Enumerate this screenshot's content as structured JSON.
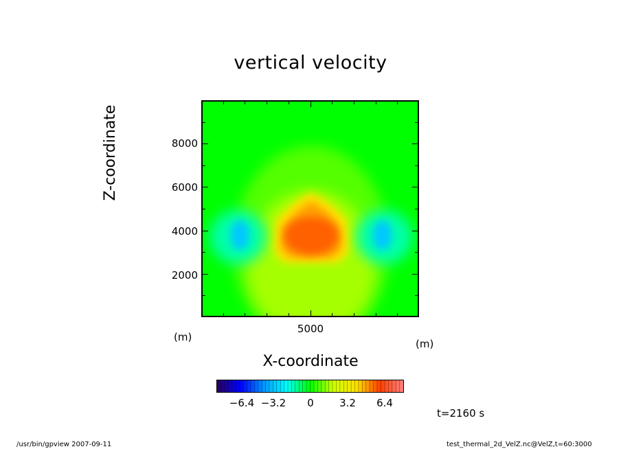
{
  "chart_data": {
    "type": "heatmap",
    "title": "vertical velocity",
    "xlabel": "X-coordinate",
    "ylabel": "Z-coordinate",
    "x_unit": "(m)",
    "z_unit": "(m)",
    "x_range": [
      0,
      10000
    ],
    "z_range": [
      0,
      10000
    ],
    "x_ticks": [
      5000
    ],
    "z_ticks": [
      2000,
      4000,
      6000,
      8000
    ],
    "colorbar": {
      "range": [
        -8,
        8
      ],
      "tick_labels": [
        "−6.4",
        "−3.2",
        "0",
        "3.2",
        "6.4"
      ],
      "tick_values": [
        -6.4,
        -3.2,
        0,
        3.2,
        6.4
      ],
      "colors": [
        "#2a0060",
        "#0000ff",
        "#0096ff",
        "#00ffff",
        "#00ff00",
        "#d0ff00",
        "#ffe000",
        "#ff4000",
        "#ff8080"
      ]
    },
    "features": [
      {
        "label": "updraft core",
        "x": 5000,
        "z": 3900,
        "value": 5.0
      },
      {
        "label": "left downdraft",
        "x": 1800,
        "z": 3900,
        "value": -3.0
      },
      {
        "label": "right downdraft",
        "x": 8200,
        "z": 3900,
        "value": -3.0
      }
    ]
  },
  "time_label": "t=2160 s",
  "footer": {
    "left": "/usr/bin/gpview   2007-09-11",
    "right": "test_thermal_2d_VelZ.nc@VelZ,t=60:3000"
  }
}
